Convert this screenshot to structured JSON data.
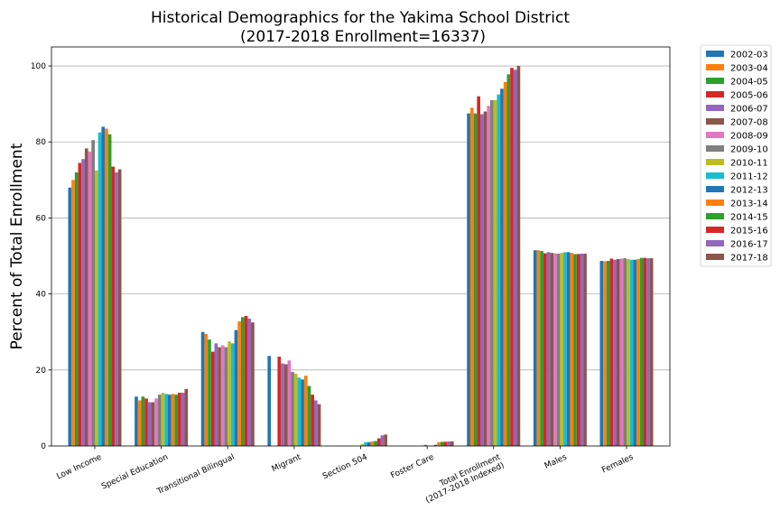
{
  "chart_data": {
    "type": "bar",
    "title_line1": "Historical Demographics for the Yakima School District",
    "title_line2": "(2017-2018 Enrollment=16337)",
    "xlabel": "",
    "ylabel": "Percent of Total Enrollment",
    "ylim": [
      0,
      105
    ],
    "yticks": [
      0,
      20,
      40,
      60,
      80,
      100
    ],
    "grid": "horizontal",
    "legend_position": "outside-top-right",
    "categories": [
      [
        "Low Income"
      ],
      [
        "Special Education"
      ],
      [
        "Transitional Bilingual"
      ],
      [
        "Migrant"
      ],
      [
        "Section 504"
      ],
      [
        "Foster Care"
      ],
      [
        "Total Enrollment",
        "(2017-2018 Indexed)"
      ],
      [
        "Males"
      ],
      [
        "Females"
      ]
    ],
    "series": [
      {
        "name": "2002-03",
        "color": "#1f77b4",
        "values": [
          68.0,
          13.0,
          30.0,
          23.7,
          0,
          0,
          87.5,
          51.5,
          48.7
        ]
      },
      {
        "name": "2003-04",
        "color": "#ff7f0e",
        "values": [
          70.0,
          12.0,
          29.5,
          0,
          0,
          0,
          89.0,
          51.5,
          48.6
        ]
      },
      {
        "name": "2004-05",
        "color": "#2ca02c",
        "values": [
          72.0,
          13.0,
          28.0,
          0,
          0,
          0,
          87.5,
          51.3,
          48.7
        ]
      },
      {
        "name": "2005-06",
        "color": "#d62728",
        "values": [
          74.5,
          12.5,
          24.8,
          23.5,
          0,
          0,
          92.0,
          50.7,
          49.3
        ]
      },
      {
        "name": "2006-07",
        "color": "#9467bd",
        "values": [
          75.5,
          11.5,
          27.0,
          21.7,
          0,
          0,
          87.3,
          51.0,
          49.0
        ]
      },
      {
        "name": "2007-08",
        "color": "#8c564b",
        "values": [
          78.3,
          11.5,
          26.0,
          21.5,
          0,
          0,
          88.0,
          50.8,
          49.2
        ]
      },
      {
        "name": "2008-09",
        "color": "#e377c2",
        "values": [
          77.5,
          12.5,
          26.5,
          22.5,
          0,
          0,
          89.5,
          50.7,
          49.3
        ]
      },
      {
        "name": "2009-10",
        "color": "#7f7f7f",
        "values": [
          80.5,
          13.5,
          26.0,
          19.5,
          0,
          0.3,
          91.0,
          50.6,
          49.4
        ]
      },
      {
        "name": "2010-11",
        "color": "#bcbd22",
        "values": [
          72.5,
          14.0,
          27.5,
          19.0,
          0.5,
          0,
          91.0,
          50.8,
          49.2
        ]
      },
      {
        "name": "2011-12",
        "color": "#17becf",
        "values": [
          82.5,
          13.7,
          27.0,
          18.0,
          1.0,
          0,
          92.5,
          51.0,
          49.0
        ]
      },
      {
        "name": "2012-13",
        "color": "#1f77b4",
        "values": [
          84.0,
          13.5,
          30.5,
          17.5,
          1.0,
          0.3,
          94.0,
          51.0,
          49.0
        ]
      },
      {
        "name": "2013-14",
        "color": "#ff7f0e",
        "values": [
          83.5,
          13.7,
          32.8,
          18.5,
          1.2,
          1.0,
          95.8,
          50.8,
          49.2
        ]
      },
      {
        "name": "2014-15",
        "color": "#2ca02c",
        "values": [
          82.0,
          13.5,
          33.9,
          15.8,
          1.3,
          1.1,
          97.8,
          50.5,
          49.5
        ]
      },
      {
        "name": "2015-16",
        "color": "#d62728",
        "values": [
          73.5,
          14.0,
          34.2,
          13.5,
          2.0,
          1.1,
          99.5,
          50.5,
          49.5
        ]
      },
      {
        "name": "2016-17",
        "color": "#9467bd",
        "values": [
          72.0,
          14.0,
          33.5,
          12.0,
          2.8,
          1.2,
          99.0,
          50.6,
          49.4
        ]
      },
      {
        "name": "2017-18",
        "color": "#8c564b",
        "values": [
          72.8,
          15.0,
          32.5,
          11.0,
          3.0,
          1.2,
          100.0,
          50.6,
          49.4
        ]
      }
    ]
  }
}
